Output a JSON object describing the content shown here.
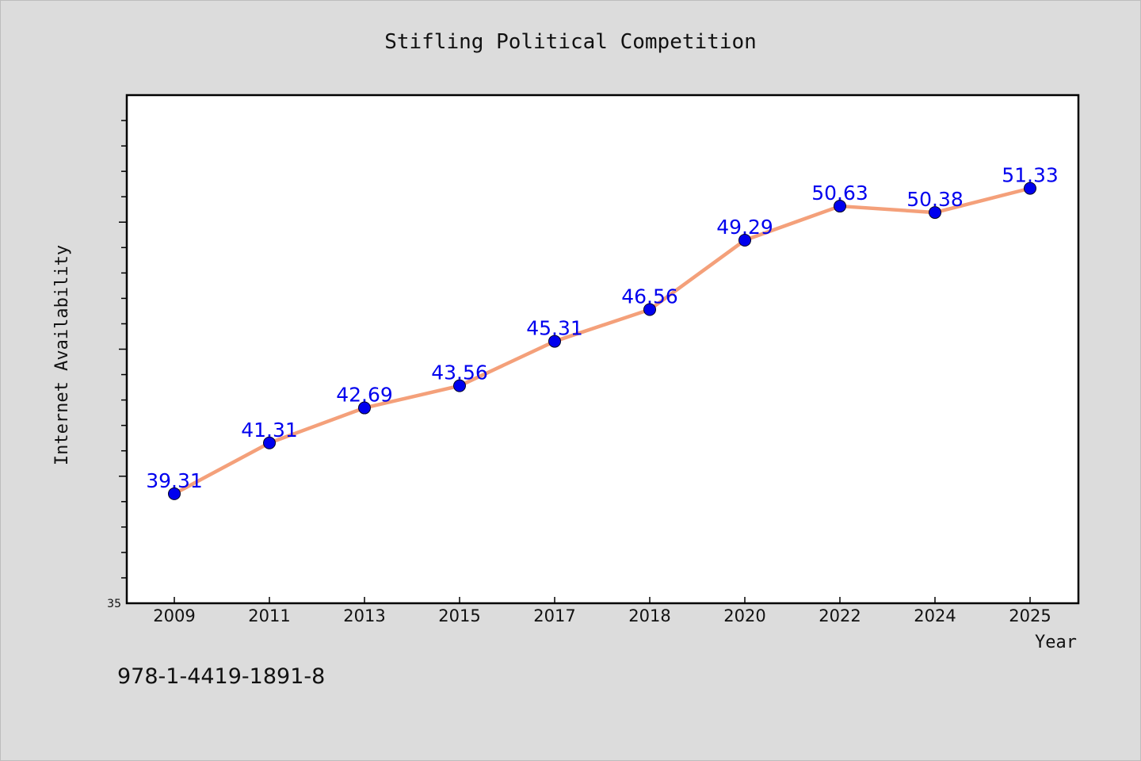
{
  "chart_data": {
    "type": "line",
    "title": "Stifling Political Competition",
    "xlabel": "Year",
    "ylabel": "Internet Availability",
    "categories": [
      "2009",
      "2011",
      "2013",
      "2015",
      "2017",
      "2018",
      "2020",
      "2022",
      "2024",
      "2025"
    ],
    "series": [
      {
        "values": [
          39.31,
          41.31,
          42.69,
          43.56,
          45.31,
          46.56,
          49.29,
          50.63,
          50.38,
          51.33
        ],
        "labels": [
          "39.31",
          "41.31",
          "42.69",
          "43.56",
          "45.31",
          "46.56",
          "49.29",
          "50.63",
          "50.38",
          "51.33"
        ]
      }
    ],
    "ylim": [
      35,
      55
    ],
    "y_tick_labels": [
      "35"
    ],
    "grid": false,
    "legend": "none",
    "colors": {
      "line": "#f4a07a",
      "marker": "#0000ee",
      "label": "#0000ee",
      "background": "#dcdcdc",
      "plot_background": "#ffffff"
    }
  },
  "footnote": "978-1-4419-1891-8"
}
